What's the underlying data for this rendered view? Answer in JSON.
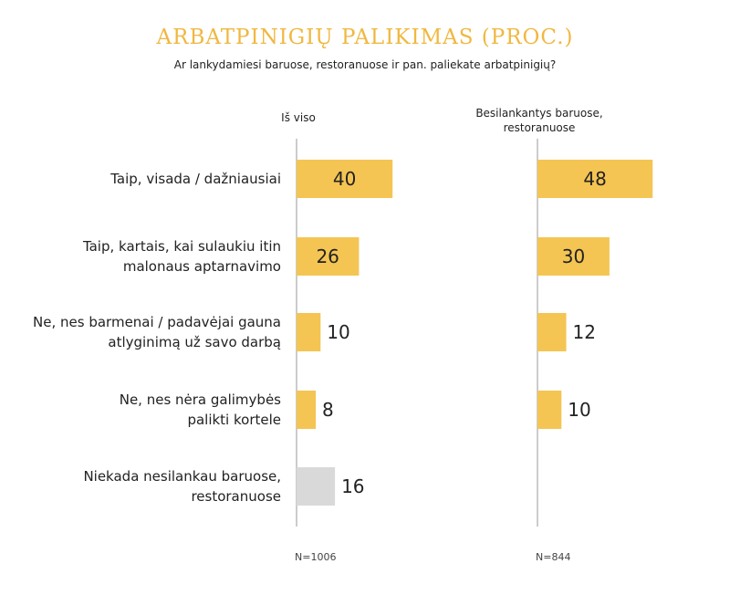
{
  "chart_data": {
    "type": "bar",
    "orientation": "horizontal",
    "title": "ARBATPINIGIŲ PALIKIMAS (PROC.)",
    "subtitle": "Ar lankydamiesi baruose, restoranuose ir pan. paliekate arbatpinigių?",
    "categories": [
      [
        "Taip, visada / dažniausiai"
      ],
      [
        "Taip, kartais, kai sulaukiu itin",
        "malonaus aptarnavimo"
      ],
      [
        "Ne, nes barmenai / padavėjai gauna",
        "atlyginimą už savo darbą"
      ],
      [
        "Ne, nes nėra galimybės",
        "palikti kortele"
      ],
      [
        "Niekada nesilankau baruose,",
        "restoranuose"
      ]
    ],
    "series": [
      {
        "name": "Iš viso",
        "name_lines": [
          "Iš viso"
        ],
        "values": [
          40,
          26,
          10,
          8,
          16
        ],
        "n_label": "N=1006"
      },
      {
        "name": "Besilankantys baruose, restoranuose",
        "name_lines": [
          "Besilankantys baruose,",
          "restoranuose"
        ],
        "values": [
          48,
          30,
          12,
          10,
          null
        ],
        "n_label": "N=844"
      }
    ],
    "colors": {
      "bar": "#f4c553",
      "neutral_bar": "#d9d9d9",
      "axis": "#999999",
      "title": "#f0b840"
    },
    "neutral_category_index": 4,
    "xlim": [
      0,
      50
    ],
    "grid": false,
    "legend": "none"
  }
}
